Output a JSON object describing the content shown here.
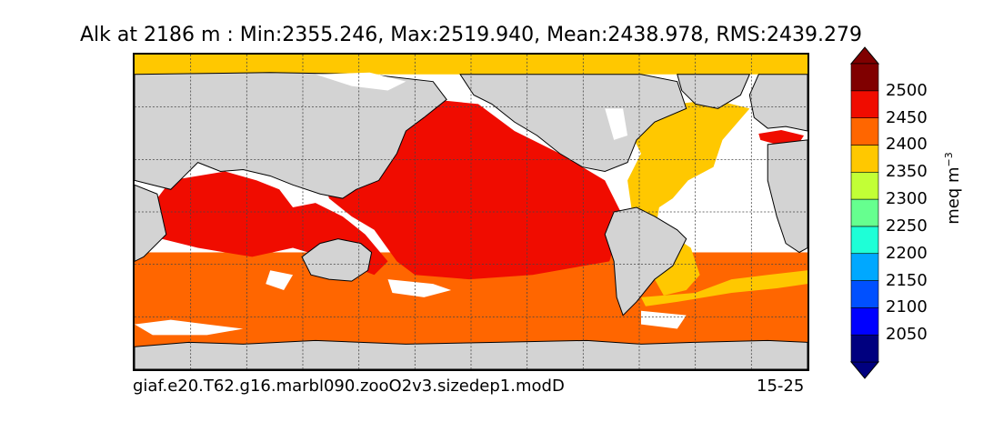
{
  "title": "Alk at 2186 m : Min:2355.246, Max:2519.940, Mean:2438.978, RMS:2439.279",
  "caption_left": "giaf.e20.T62.g16.marbl090.zooO2v3.sizedep1.modD",
  "caption_right": "15-25",
  "colorbar": {
    "unit_base": "meq m",
    "unit_exp": "−3",
    "ticks": [
      "2050",
      "2100",
      "2150",
      "2200",
      "2250",
      "2300",
      "2350",
      "2400",
      "2450",
      "2500"
    ],
    "colors": [
      "#00007f",
      "#0000ff",
      "#0050ff",
      "#00a8ff",
      "#1effd7",
      "#66ff8f",
      "#c2ff36",
      "#ffc800",
      "#ff6600",
      "#f00c00",
      "#800000"
    ],
    "extend_low_color": "#00007f",
    "extend_high_color": "#800000"
  },
  "map": {
    "land_color": "#d3d3d3",
    "missing_color": "#ffffff",
    "regions": {
      "arctic": "#ffc800",
      "atlantic": "#ffc800",
      "pacific": "#f00c00",
      "indian": "#f00c00",
      "southern": "#ff6600",
      "mediterranean": "#f00c00"
    }
  }
}
